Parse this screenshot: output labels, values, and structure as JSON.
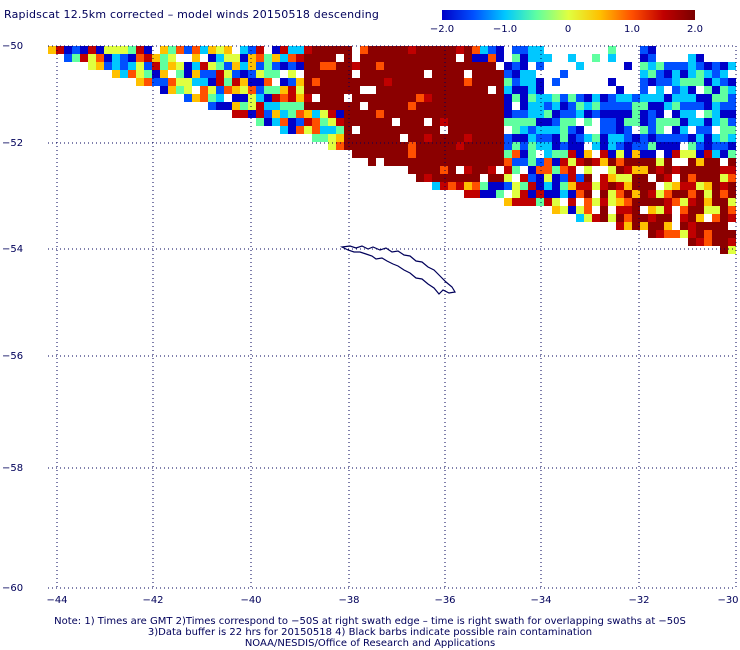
{
  "title": "Rapidscat 12.5km corrected – model winds 20150518 descending",
  "colorbar": {
    "ticks": [
      "−2.0",
      "−1.0",
      "0",
      "1.0",
      "2.0"
    ],
    "stops": [
      "#0000c8",
      "#0050ff",
      "#00c8ff",
      "#60ffa0",
      "#e0ff40",
      "#ffc000",
      "#ff5000",
      "#c00000",
      "#7a0000"
    ]
  },
  "axes": {
    "lon_ticks": [
      "−44",
      "−42",
      "−40",
      "−38",
      "−36",
      "−34",
      "−32",
      "−30"
    ],
    "lat_ticks": [
      "−50",
      "−52",
      "−54",
      "−56",
      "−58",
      "−60"
    ]
  },
  "notes": [
    "Note: 1) Times are GMT 2)Times correspond to −50S at right swath edge – time is right swath for overlapping swaths at −50S",
    "3)Data buffer is 22 hrs for 20150518 4) Black barbs indicate possible rain contamination",
    "NOAA/NESDIS/Office of Research and Applications"
  ],
  "colors": {
    "coastline": "#00005a",
    "grid": "#00005a"
  }
}
